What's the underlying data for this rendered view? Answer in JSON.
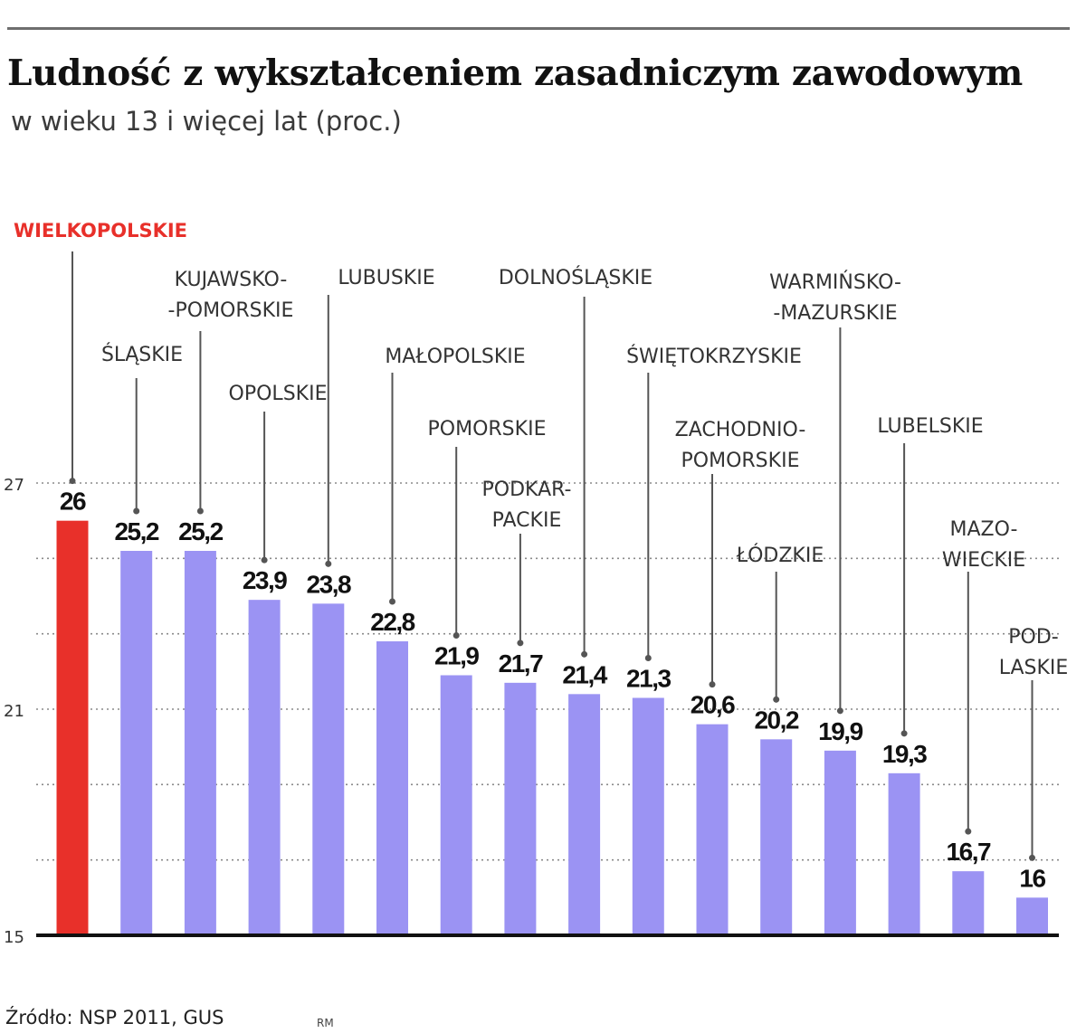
{
  "header": {
    "title": "Ludność z wykształceniem zasadniczym zawodowym",
    "subtitle": "w wieku 13 i więcej lat (proc.)"
  },
  "footer": {
    "source": "Źródło: NSP 2011,  GUS",
    "credit": "RM"
  },
  "colors": {
    "highlight": "#e8302a",
    "bar": "#9b93f3",
    "axis": "#111111",
    "grid": "#8a8a8a",
    "leader": "#555555",
    "label": "#333333"
  },
  "chart_data": {
    "type": "bar",
    "title": "Ludność z wykształceniem zasadniczym zawodowym",
    "subtitle": "w wieku 13 i więcej lat (proc.)",
    "ylim": [
      15,
      27
    ],
    "y_ticks": [
      15,
      21,
      27
    ],
    "grid": "dotted horizontal",
    "highlight_index": 0,
    "categories": [
      "WIELKOPOLSKIE",
      "ŚLĄSKIE",
      "KUJAWSKO-POMORSKIE",
      "OPOLSKIE",
      "LUBUSKIE",
      "MAŁOPOLSKIE",
      "POMORSKIE",
      "PODKARPACKIE",
      "DOLNOŚLĄSKIE",
      "ŚWIĘTOKRZYSKIE",
      "ZACHODNIOPOMORSKIE",
      "ŁÓDZKIE",
      "WARMIŃSKO-MAZURSKIE",
      "LUBELSKIE",
      "MAZOWIECKIE",
      "PODLASKIE"
    ],
    "category_label_lines": [
      [
        "WIELKOPOLSKIE"
      ],
      [
        "ŚLĄSKIE"
      ],
      [
        "KUJAWSKO-",
        "-POMORSKIE"
      ],
      [
        "OPOLSKIE"
      ],
      [
        "LUBUSKIE"
      ],
      [
        "MAŁOPOLSKIE"
      ],
      [
        "POMORSKIE"
      ],
      [
        "PODKAR-",
        "PACKIE"
      ],
      [
        "DOLNOŚLĄSKIE"
      ],
      [
        "ŚWIĘTOKRZYSKIE"
      ],
      [
        "ZACHODNIO-",
        "POMORSKIE"
      ],
      [
        "ŁÓDZKIE"
      ],
      [
        "WARMIŃSKO-",
        "-MAZURSKIE"
      ],
      [
        "LUBELSKIE"
      ],
      [
        "MAZO-",
        "WIECKIE"
      ],
      [
        "POD-",
        "LASKIE"
      ]
    ],
    "values": [
      26,
      25.2,
      25.2,
      23.9,
      23.8,
      22.8,
      21.9,
      21.7,
      21.4,
      21.3,
      20.6,
      20.2,
      19.9,
      19.3,
      16.7,
      16
    ],
    "value_labels": [
      "26",
      "25,2",
      "25,2",
      "23,9",
      "23,8",
      "22,8",
      "21,9",
      "21,7",
      "21,4",
      "21,3",
      "20,6",
      "20,2",
      "19,9",
      "19,3",
      "16,7",
      "16"
    ]
  }
}
